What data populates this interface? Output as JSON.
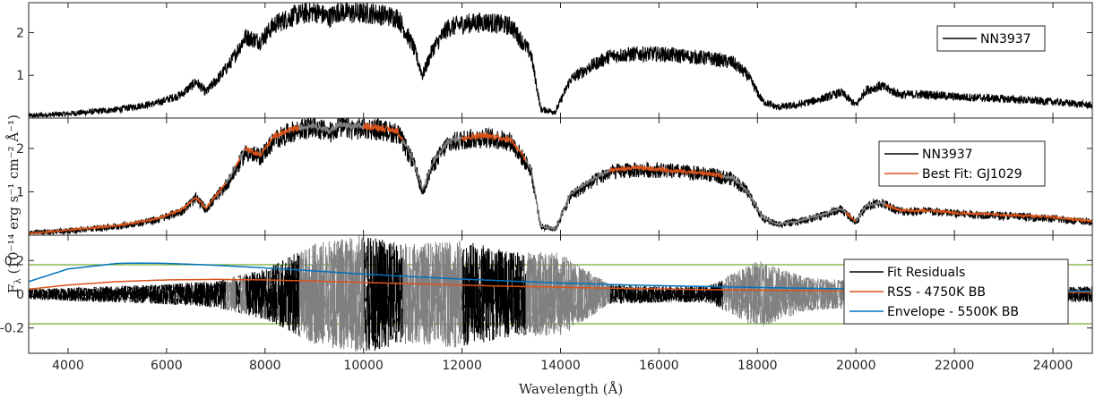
{
  "figure": {
    "xlabel": "Wavelength (Å)",
    "ylabel_main": "F",
    "ylabel_sub": "λ",
    "ylabel_units": "(10⁻¹⁴ erg s⁻¹ cm⁻² Å⁻¹)"
  },
  "colors": {
    "observed": "#000000",
    "fit": "#D95319",
    "masked": "#808080",
    "envelope": "#0072BD",
    "threshold": "#77AC30"
  },
  "chart_data": [
    {
      "type": "line",
      "panel": "top",
      "xlim": [
        3200,
        24800
      ],
      "ylim": [
        0,
        2.7
      ],
      "yticks": [
        1,
        2
      ],
      "legend": [
        "NN3937"
      ],
      "legend_position": "top-right",
      "series": [
        {
          "name": "NN3937",
          "x": [
            3200,
            4000,
            5000,
            5800,
            6300,
            6600,
            6800,
            7100,
            7300,
            7600,
            7900,
            8200,
            8600,
            9000,
            9300,
            9500,
            9800,
            10200,
            10700,
            11000,
            11200,
            11400,
            11700,
            12000,
            12500,
            13000,
            13400,
            13600,
            13900,
            14200,
            14600,
            15000,
            15500,
            16000,
            16500,
            17000,
            17500,
            17800,
            18100,
            18400,
            18800,
            19300,
            19700,
            20000,
            20200,
            20500,
            20900,
            21500,
            22000,
            23000,
            24000,
            24800
          ],
          "y": [
            0.05,
            0.1,
            0.2,
            0.35,
            0.55,
            0.85,
            0.6,
            1.0,
            1.3,
            1.9,
            1.8,
            2.2,
            2.4,
            2.5,
            2.35,
            2.5,
            2.45,
            2.45,
            2.35,
            1.7,
            1.0,
            1.6,
            2.1,
            2.2,
            2.25,
            2.15,
            1.5,
            0.2,
            0.15,
            0.9,
            1.2,
            1.45,
            1.5,
            1.5,
            1.45,
            1.4,
            1.3,
            1.0,
            0.4,
            0.25,
            0.3,
            0.45,
            0.6,
            0.3,
            0.65,
            0.75,
            0.55,
            0.55,
            0.5,
            0.45,
            0.38,
            0.3
          ]
        }
      ]
    },
    {
      "type": "line",
      "panel": "middle",
      "xlim": [
        3200,
        24800
      ],
      "ylim": [
        0,
        2.7
      ],
      "yticks": [
        1,
        2
      ],
      "legend": [
        "NN3937",
        "Best Fit: GJ1029"
      ],
      "legend_position": "right",
      "series": [
        {
          "name": "NN3937",
          "x": [
            3200,
            4000,
            5000,
            5800,
            6300,
            6600,
            6800,
            7100,
            7300,
            7600,
            7900,
            8200,
            8600,
            9000,
            9300,
            9500,
            9800,
            10200,
            10700,
            11000,
            11200,
            11400,
            11700,
            12000,
            12500,
            13000,
            13400,
            13600,
            13900,
            14200,
            14600,
            15000,
            15500,
            16000,
            16500,
            17000,
            17500,
            17800,
            18100,
            18400,
            18800,
            19300,
            19700,
            20000,
            20200,
            20500,
            20900,
            21500,
            22000,
            23000,
            24000,
            24800
          ],
          "y": [
            0.05,
            0.1,
            0.2,
            0.35,
            0.55,
            0.85,
            0.6,
            1.0,
            1.3,
            1.9,
            1.8,
            2.2,
            2.4,
            2.5,
            2.35,
            2.5,
            2.45,
            2.45,
            2.35,
            1.7,
            1.0,
            1.6,
            2.1,
            2.2,
            2.25,
            2.15,
            1.5,
            0.2,
            0.15,
            0.9,
            1.2,
            1.45,
            1.5,
            1.5,
            1.45,
            1.4,
            1.3,
            1.0,
            0.4,
            0.25,
            0.3,
            0.45,
            0.6,
            0.3,
            0.65,
            0.75,
            0.55,
            0.55,
            0.5,
            0.45,
            0.38,
            0.3
          ]
        },
        {
          "name": "Best Fit: GJ1029",
          "x": [
            3200,
            4000,
            5000,
            5800,
            6300,
            6600,
            6800,
            7100,
            7300,
            7600,
            7900,
            8200,
            8600,
            9000,
            9300,
            9500,
            9800,
            10200,
            10700,
            11000,
            11200,
            11400,
            11700,
            12000,
            12500,
            13000,
            13400,
            13600,
            13900,
            14200,
            14600,
            15000,
            15500,
            16000,
            16500,
            17000,
            17500,
            17800,
            18100,
            18400,
            18800,
            19300,
            19700,
            20000,
            20200,
            20500,
            20900,
            21500,
            22000,
            23000,
            24000,
            24800
          ],
          "y": [
            0.04,
            0.12,
            0.22,
            0.38,
            0.58,
            0.88,
            0.62,
            1.05,
            1.35,
            2.0,
            1.85,
            2.3,
            2.45,
            2.55,
            2.4,
            2.55,
            2.5,
            2.5,
            2.4,
            1.75,
            1.05,
            1.65,
            2.15,
            2.25,
            2.3,
            2.2,
            1.55,
            0.2,
            0.15,
            0.95,
            1.25,
            1.5,
            1.55,
            1.52,
            1.47,
            1.42,
            1.32,
            1.02,
            0.42,
            0.25,
            0.32,
            0.47,
            0.62,
            0.32,
            0.67,
            0.75,
            0.57,
            0.57,
            0.52,
            0.47,
            0.42,
            0.32
          ]
        }
      ],
      "masked_ranges": [
        [
          7200,
          7400
        ],
        [
          7500,
          7600
        ],
        [
          8700,
          10000
        ],
        [
          10800,
          12000
        ],
        [
          13300,
          15000
        ],
        [
          17300,
          19800
        ],
        [
          20000,
          20600
        ]
      ]
    },
    {
      "type": "line",
      "panel": "bottom",
      "xlim": [
        3200,
        24800
      ],
      "ylim": [
        -0.35,
        0.35
      ],
      "yticks": [
        -0.2,
        0,
        0.2
      ],
      "xticks": [
        4000,
        6000,
        8000,
        10000,
        12000,
        14000,
        16000,
        18000,
        20000,
        22000,
        24000
      ],
      "legend": [
        "Fit Residuals",
        "RSS - 4750K BB",
        "Envelope - 5500K BB"
      ],
      "legend_position": "right",
      "threshold": 0.175,
      "series": [
        {
          "name": "Fit Residuals",
          "x": [
            3200,
            4000,
            5000,
            6000,
            7000,
            8000,
            9000,
            10000,
            11000,
            12000,
            13000,
            14000,
            15000,
            16000,
            17000,
            18000,
            19000,
            20000,
            21000,
            22000,
            23000,
            24000,
            24800
          ],
          "amplitude": [
            0.03,
            0.04,
            0.05,
            0.06,
            0.08,
            0.15,
            0.3,
            0.35,
            0.3,
            0.32,
            0.25,
            0.25,
            0.06,
            0.05,
            0.05,
            0.2,
            0.1,
            0.08,
            0.05,
            0.04,
            0.04,
            0.04,
            0.05
          ]
        },
        {
          "name": "RSS - 4750K BB",
          "x": [
            3200,
            4000,
            5000,
            6000,
            7000,
            8000,
            9000,
            10000,
            11000,
            12000,
            13000,
            14000,
            15000,
            16000,
            18000,
            20000,
            22000,
            24000,
            24800
          ],
          "y": [
            0.03,
            0.055,
            0.075,
            0.085,
            0.088,
            0.085,
            0.078,
            0.07,
            0.062,
            0.054,
            0.047,
            0.041,
            0.036,
            0.031,
            0.024,
            0.019,
            0.015,
            0.012,
            0.011
          ]
        },
        {
          "name": "Envelope - 5500K BB",
          "x": [
            3200,
            4000,
            5000,
            5500,
            6000,
            7000,
            8000,
            9000,
            10000,
            11000,
            12000,
            13000,
            14000,
            15000,
            16000,
            18000,
            20000,
            22000,
            24000,
            24800
          ],
          "y": [
            0.075,
            0.15,
            0.183,
            0.185,
            0.183,
            0.172,
            0.156,
            0.138,
            0.12,
            0.104,
            0.09,
            0.078,
            0.067,
            0.058,
            0.051,
            0.04,
            0.031,
            0.025,
            0.02,
            0.018
          ]
        }
      ]
    }
  ]
}
